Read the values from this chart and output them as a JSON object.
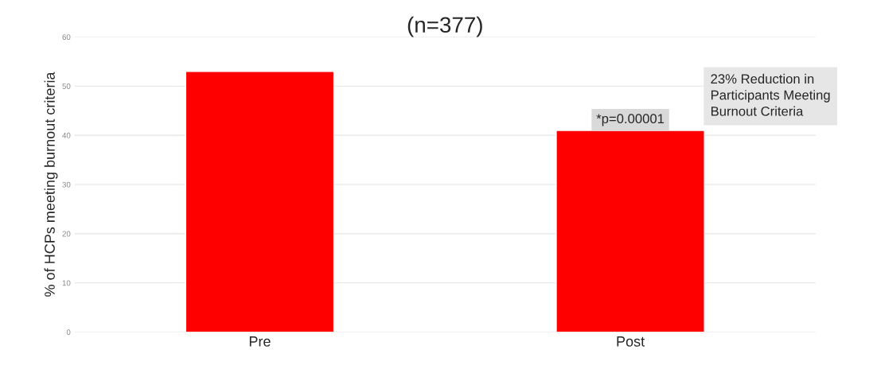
{
  "chart_data": {
    "type": "bar",
    "title": "(n=377)",
    "ylabel": "% of HCPs meeting burnout criteria",
    "categories": [
      "Pre",
      "Post"
    ],
    "values": [
      53,
      41
    ],
    "color": "#ff0000",
    "ylim": [
      0,
      60
    ],
    "yticks": [
      0,
      10,
      20,
      30,
      40,
      50,
      60
    ],
    "grid": "y",
    "legend": false,
    "annotations": [
      {
        "text": "*p=0.00001",
        "x": "Post",
        "y": 41
      },
      "23% Reduction in\nParticipants Meeting\nBurnout Criteria"
    ]
  }
}
